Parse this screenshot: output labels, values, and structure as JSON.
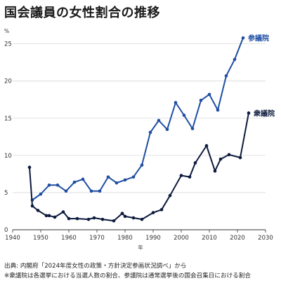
{
  "header": {
    "title": "国会議員の女性割合の推移"
  },
  "footer": {
    "source": "出典: 内閣府「2024年度女性の政策・方針決定参画状況調べ」から",
    "note": "※衆議院は各選挙における当選人数の割合、参議院は通常選挙後の国会召集日における割合"
  },
  "chart_data": {
    "type": "line",
    "title": "国会議員の女性割合の推移",
    "xlabel": "年",
    "ylabel": "%",
    "xlim": [
      1940,
      2030
    ],
    "ylim": [
      0,
      26
    ],
    "xticks": [
      1940,
      1950,
      1960,
      1970,
      1980,
      1990,
      2000,
      2010,
      2020,
      2030
    ],
    "yticks": [
      0,
      5,
      10,
      15,
      20,
      25
    ],
    "grid": true,
    "legend": "direct-labels",
    "series": [
      {
        "name": "参議院",
        "color": "#1f4ea3",
        "points": [
          [
            1947,
            4.0
          ],
          [
            1950,
            4.8
          ],
          [
            1953,
            6.0
          ],
          [
            1956,
            6.0
          ],
          [
            1959,
            5.2
          ],
          [
            1962,
            6.4
          ],
          [
            1965,
            6.8
          ],
          [
            1968,
            5.2
          ],
          [
            1971,
            5.2
          ],
          [
            1974,
            7.1
          ],
          [
            1977,
            6.3
          ],
          [
            1980,
            6.7
          ],
          [
            1983,
            7.1
          ],
          [
            1986,
            8.7
          ],
          [
            1989,
            13.1
          ],
          [
            1992,
            14.7
          ],
          [
            1995,
            13.5
          ],
          [
            1998,
            17.1
          ],
          [
            2001,
            15.4
          ],
          [
            2004,
            13.6
          ],
          [
            2007,
            17.4
          ],
          [
            2010,
            18.2
          ],
          [
            2013,
            16.1
          ],
          [
            2016,
            20.7
          ],
          [
            2019,
            22.9
          ],
          [
            2022,
            25.8
          ]
        ]
      },
      {
        "name": "衆議院",
        "color": "#0d1a3c",
        "points": [
          [
            1946,
            8.4
          ],
          [
            1947,
            3.2
          ],
          [
            1949,
            2.6
          ],
          [
            1952,
            1.9
          ],
          [
            1953,
            1.9
          ],
          [
            1955,
            1.7
          ],
          [
            1958,
            2.4
          ],
          [
            1960,
            1.5
          ],
          [
            1963,
            1.5
          ],
          [
            1967,
            1.4
          ],
          [
            1969,
            1.6
          ],
          [
            1972,
            1.4
          ],
          [
            1976,
            1.2
          ],
          [
            1979,
            2.2
          ],
          [
            1980,
            1.8
          ],
          [
            1983,
            1.6
          ],
          [
            1986,
            1.4
          ],
          [
            1990,
            2.3
          ],
          [
            1993,
            2.7
          ],
          [
            1996,
            4.6
          ],
          [
            2000,
            7.3
          ],
          [
            2003,
            7.1
          ],
          [
            2005,
            9.0
          ],
          [
            2009,
            11.3
          ],
          [
            2012,
            7.9
          ],
          [
            2014,
            9.5
          ],
          [
            2017,
            10.1
          ],
          [
            2021,
            9.7
          ],
          [
            2024,
            15.7
          ]
        ]
      }
    ]
  }
}
